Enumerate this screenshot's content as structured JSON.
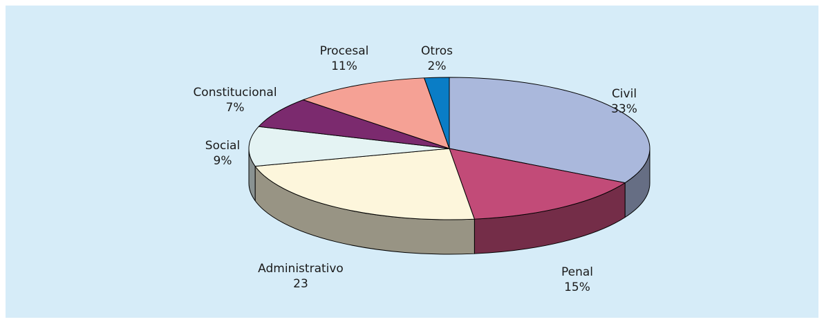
{
  "chart_data": {
    "type": "pie",
    "categories": [
      "Civil",
      "Penal",
      "Administrativo",
      "Social",
      "Constitucional",
      "Procesal",
      "Otros"
    ],
    "values": [
      33,
      15,
      23,
      9,
      7,
      11,
      2
    ],
    "value_labels": [
      "33%",
      "15%",
      "23",
      "9%",
      "7%",
      "11%",
      "2%"
    ],
    "colors": [
      "#aab8dc",
      "#c24b78",
      "#fdf6dc",
      "#e4f3f3",
      "#7b2a6e",
      "#f5a195",
      "#0a7dc6"
    ]
  }
}
